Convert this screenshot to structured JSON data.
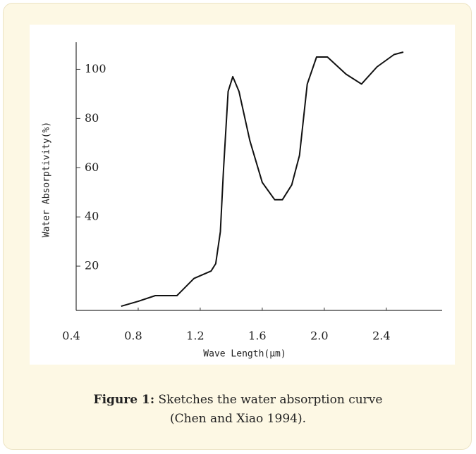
{
  "chart_data": {
    "type": "line",
    "x_label": "Wave Length(μm)",
    "y_label": "Water Absorptivity(%)",
    "x": [
      0.69,
      0.8,
      0.91,
      1.05,
      1.16,
      1.27,
      1.3,
      1.33,
      1.35,
      1.38,
      1.41,
      1.45,
      1.52,
      1.6,
      1.68,
      1.73,
      1.79,
      1.84,
      1.89,
      1.95,
      2.02,
      2.14,
      2.24,
      2.34,
      2.45,
      2.51
    ],
    "series": [
      {
        "color": "#111111",
        "values": [
          3.7,
          5.7,
          8,
          8,
          15,
          18,
          21,
          34,
          59,
          91,
          97,
          91,
          71,
          54,
          47,
          47,
          53,
          65,
          94,
          105,
          105,
          98,
          94,
          101,
          106,
          107
        ]
      }
    ],
    "xlim": [
      0.4,
      2.76
    ],
    "ylim": [
      2,
      111
    ],
    "xticks": [
      0.4,
      0.8,
      1.2,
      1.6,
      {
        "value": 2,
        "label": "2.0"
      },
      2.4
    ],
    "yticks": [
      20,
      40,
      60,
      80,
      100
    ],
    "grid": false
  },
  "caption": {
    "label": "Figure 1:",
    "text": "Sketches the water absorption curve",
    "source": "(Chen and Xiao 1994)."
  }
}
